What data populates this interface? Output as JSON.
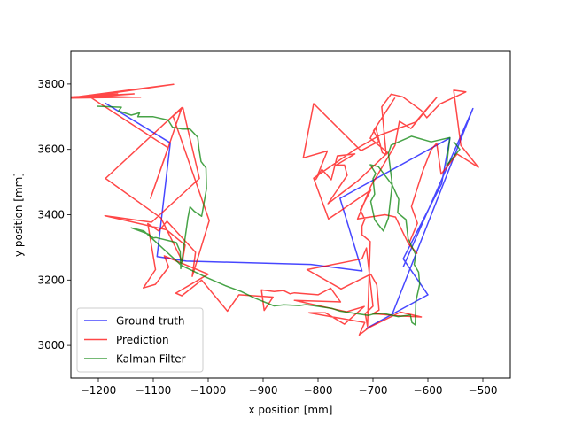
{
  "chart_data": {
    "type": "line",
    "title": "",
    "xlabel": "x position [mm]",
    "ylabel": "y position [mm]",
    "xlim": [
      -1250,
      -450
    ],
    "ylim": [
      2900,
      3900
    ],
    "xticks": [
      -1200,
      -1100,
      -1000,
      -900,
      -800,
      -700,
      -600,
      -500
    ],
    "xtick_labels": [
      "−1200",
      "−1100",
      "−1000",
      "−900",
      "−800",
      "−700",
      "−600",
      "−500"
    ],
    "yticks": [
      3000,
      3200,
      3400,
      3600,
      3800
    ],
    "ytick_labels": [
      "3000",
      "3200",
      "3400",
      "3600",
      "3800"
    ],
    "grid": false,
    "legend": {
      "position": "lower-left"
    },
    "series": [
      {
        "name": "Ground truth",
        "color": "#0000ff",
        "points": [
          [
            -1188,
            3742
          ],
          [
            -1069,
            3620
          ],
          [
            -1093,
            3272
          ],
          [
            -1040,
            3258
          ],
          [
            -813,
            3248
          ],
          [
            -720,
            3228
          ],
          [
            -760,
            3450
          ],
          [
            -560,
            3635
          ],
          [
            -575,
            3495
          ],
          [
            -645,
            3265
          ],
          [
            -600,
            3155
          ],
          [
            -712,
            3052
          ],
          [
            -665,
            3095
          ],
          [
            -518,
            3725
          ],
          [
            -645,
            3240
          ]
        ]
      },
      {
        "name": "Prediction",
        "color": "#ff0000",
        "points": [
          [
            -1265,
            3757
          ],
          [
            -1165,
            3770
          ],
          [
            -1237,
            3758
          ],
          [
            -1135,
            3770
          ],
          [
            -1257,
            3760
          ],
          [
            -1138,
            3760
          ],
          [
            -1215,
            3763
          ],
          [
            -1063,
            3799
          ],
          [
            -1257,
            3757
          ],
          [
            -1123,
            3760
          ],
          [
            -1213,
            3758
          ],
          [
            -1073,
            3605
          ],
          [
            -1105,
            3450
          ],
          [
            -1080,
            3570
          ],
          [
            -1048,
            3728
          ],
          [
            -1187,
            3511
          ],
          [
            -1086,
            3390
          ],
          [
            -1047,
            3257
          ],
          [
            -1042,
            3307
          ],
          [
            -1076,
            3354
          ],
          [
            -1188,
            3397
          ],
          [
            -1103,
            3377
          ],
          [
            -1016,
            3511
          ],
          [
            -1040,
            3682
          ],
          [
            -1046,
            3727
          ],
          [
            -1064,
            3702
          ],
          [
            -998,
            3382
          ],
          [
            -1029,
            3211
          ],
          [
            -1023,
            3285
          ],
          [
            -1075,
            3380
          ],
          [
            -1090,
            3350
          ],
          [
            -1110,
            3373
          ],
          [
            -1096,
            3232
          ],
          [
            -1118,
            3176
          ],
          [
            -1096,
            3187
          ],
          [
            -1072,
            3240
          ],
          [
            -1080,
            3274
          ],
          [
            -1000,
            3218
          ],
          [
            -1059,
            3160
          ],
          [
            -1048,
            3152
          ],
          [
            -1012,
            3200
          ],
          [
            -965,
            3105
          ],
          [
            -944,
            3155
          ],
          [
            -882,
            3148
          ],
          [
            -898,
            3107
          ],
          [
            -903,
            3170
          ],
          [
            -880,
            3165
          ],
          [
            -863,
            3168
          ],
          [
            -851,
            3158
          ],
          [
            -843,
            3161
          ],
          [
            -800,
            3155
          ],
          [
            -777,
            3175
          ],
          [
            -759,
            3133
          ],
          [
            -843,
            3138
          ],
          [
            -748,
            3103
          ],
          [
            -716,
            3119
          ],
          [
            -752,
            3065
          ],
          [
            -787,
            3100
          ],
          [
            -817,
            3100
          ],
          [
            -715,
            3070
          ],
          [
            -725,
            3032
          ],
          [
            -707,
            3055
          ],
          [
            -650,
            3102
          ],
          [
            -612,
            3087
          ],
          [
            -650,
            3090
          ],
          [
            -700,
            3097
          ],
          [
            -689,
            3108
          ],
          [
            -693,
            3185
          ],
          [
            -704,
            3218
          ],
          [
            -758,
            3173
          ],
          [
            -820,
            3232
          ],
          [
            -720,
            3265
          ],
          [
            -712,
            3298
          ],
          [
            -700,
            3120
          ],
          [
            -714,
            3097
          ],
          [
            -710,
            3058
          ],
          [
            -705,
            3318
          ],
          [
            -720,
            3339
          ],
          [
            -720,
            3365
          ],
          [
            -715,
            3386
          ],
          [
            -723,
            3415
          ],
          [
            -704,
            3475
          ],
          [
            -781,
            3387
          ],
          [
            -808,
            3512
          ],
          [
            -734,
            3598
          ],
          [
            -687,
            3644
          ],
          [
            -623,
            3683
          ],
          [
            -584,
            3759
          ],
          [
            -631,
            3664
          ],
          [
            -652,
            3686
          ],
          [
            -660,
            3612
          ],
          [
            -704,
            3487
          ],
          [
            -728,
            3387
          ],
          [
            -678,
            3400
          ],
          [
            -659,
            3393
          ],
          [
            -636,
            3313
          ],
          [
            -620,
            3282
          ],
          [
            -635,
            3310
          ],
          [
            -619,
            3374
          ],
          [
            -630,
            3425
          ],
          [
            -609,
            3535
          ],
          [
            -594,
            3599
          ],
          [
            -584,
            3619
          ],
          [
            -576,
            3524
          ],
          [
            -547,
            3586
          ],
          [
            -508,
            3545
          ],
          [
            -540,
            3612
          ],
          [
            -553,
            3781
          ],
          [
            -531,
            3776
          ],
          [
            -578,
            3739
          ],
          [
            -602,
            3697
          ],
          [
            -612,
            3719
          ],
          [
            -646,
            3761
          ],
          [
            -667,
            3769
          ],
          [
            -684,
            3730
          ],
          [
            -676,
            3584
          ],
          [
            -683,
            3590
          ],
          [
            -695,
            3667
          ],
          [
            -705,
            3634
          ],
          [
            -673,
            3590
          ],
          [
            -728,
            3503
          ],
          [
            -782,
            3434
          ],
          [
            -747,
            3521
          ],
          [
            -752,
            3552
          ],
          [
            -767,
            3552
          ],
          [
            -733,
            3586
          ],
          [
            -765,
            3580
          ],
          [
            -776,
            3507
          ],
          [
            -793,
            3539
          ],
          [
            -804,
            3508
          ],
          [
            -783,
            3595
          ],
          [
            -827,
            3574
          ],
          [
            -808,
            3740
          ],
          [
            -722,
            3596
          ],
          [
            -689,
            3625
          ],
          [
            -699,
            3657
          ],
          [
            -670,
            3732
          ],
          [
            -660,
            3758
          ]
        ]
      },
      {
        "name": "Kalman Filter",
        "color": "#008000",
        "points": [
          [
            -1203,
            3732
          ],
          [
            -1158,
            3729
          ],
          [
            -1163,
            3718
          ],
          [
            -1140,
            3705
          ],
          [
            -1125,
            3712
          ],
          [
            -1128,
            3700
          ],
          [
            -1100,
            3700
          ],
          [
            -1073,
            3690
          ],
          [
            -1065,
            3668
          ],
          [
            -1047,
            3662
          ],
          [
            -1033,
            3662
          ],
          [
            -1019,
            3637
          ],
          [
            -1017,
            3604
          ],
          [
            -1013,
            3563
          ],
          [
            -1004,
            3543
          ],
          [
            -1003,
            3480
          ],
          [
            -1008,
            3432
          ],
          [
            -1012,
            3395
          ],
          [
            -1025,
            3410
          ],
          [
            -1033,
            3424
          ],
          [
            -1037,
            3390
          ],
          [
            -1050,
            3235
          ],
          [
            -1051,
            3287
          ],
          [
            -1058,
            3315
          ],
          [
            -1095,
            3330
          ],
          [
            -1100,
            3329
          ],
          [
            -1108,
            3340
          ],
          [
            -1140,
            3360
          ],
          [
            -1117,
            3350
          ],
          [
            -1049,
            3245
          ],
          [
            -1002,
            3207
          ],
          [
            -969,
            3183
          ],
          [
            -940,
            3165
          ],
          [
            -917,
            3146
          ],
          [
            -880,
            3121
          ],
          [
            -862,
            3124
          ],
          [
            -834,
            3122
          ],
          [
            -822,
            3125
          ],
          [
            -774,
            3113
          ],
          [
            -760,
            3105
          ],
          [
            -740,
            3100
          ],
          [
            -708,
            3092
          ],
          [
            -699,
            3096
          ],
          [
            -682,
            3098
          ],
          [
            -654,
            3088
          ],
          [
            -632,
            3093
          ],
          [
            -629,
            3070
          ],
          [
            -623,
            3063
          ],
          [
            -622,
            3135
          ],
          [
            -615,
            3187
          ],
          [
            -617,
            3224
          ],
          [
            -625,
            3248
          ],
          [
            -622,
            3277
          ],
          [
            -636,
            3326
          ],
          [
            -640,
            3385
          ],
          [
            -655,
            3406
          ],
          [
            -653,
            3447
          ],
          [
            -665,
            3491
          ],
          [
            -690,
            3547
          ],
          [
            -705,
            3553
          ],
          [
            -695,
            3526
          ],
          [
            -700,
            3510
          ],
          [
            -697,
            3463
          ],
          [
            -704,
            3441
          ],
          [
            -697,
            3384
          ],
          [
            -681,
            3350
          ],
          [
            -672,
            3390
          ],
          [
            -665,
            3493
          ],
          [
            -672,
            3588
          ],
          [
            -667,
            3613
          ],
          [
            -630,
            3640
          ],
          [
            -594,
            3623
          ],
          [
            -560,
            3636
          ],
          [
            -566,
            3551
          ],
          [
            -542,
            3600
          ],
          [
            -553,
            3624
          ]
        ]
      }
    ]
  }
}
